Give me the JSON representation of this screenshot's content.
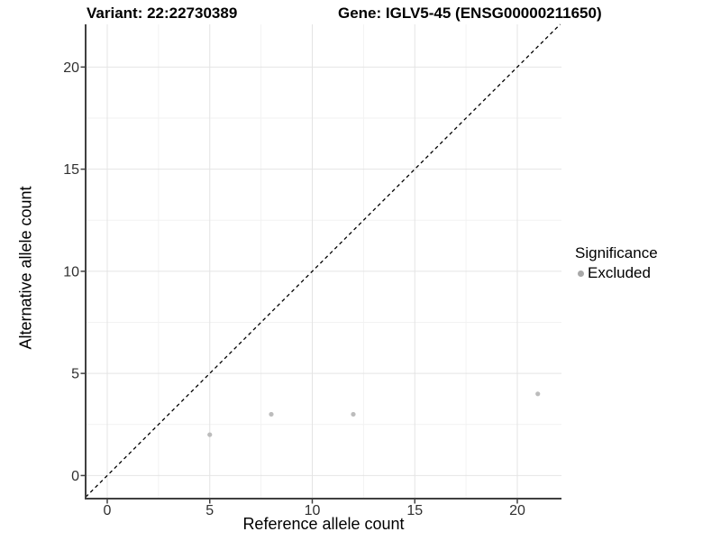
{
  "figure": {
    "title_left": "Variant: 22:22730389",
    "title_right": "Gene: IGLV5-45 (ENSG00000211650)"
  },
  "legend": {
    "title": "Significance",
    "items": [
      {
        "label": "Excluded",
        "color": "#a8a8a8"
      }
    ]
  },
  "colors": {
    "point": "#bcbcbc",
    "axis_line": "#404040",
    "tick_text": "#303030",
    "grid_major": "#e4e4e4",
    "grid_minor": "#f2f2f2",
    "abline": "#000000"
  },
  "chart_data": {
    "type": "scatter",
    "title": "Variant: 22:22730389 — Gene: IGLV5-45 (ENSG00000211650)",
    "xlabel": "Reference allele count",
    "ylabel": "Alternative allele count",
    "xlim": [
      -1.055,
      22.155
    ],
    "ylim": [
      -1.13,
      22.09
    ],
    "xticks": [
      0,
      5,
      10,
      15,
      20
    ],
    "yticks": [
      0,
      5,
      10,
      15,
      20
    ],
    "x_minor_breaks": [
      2.5,
      7.5,
      12.5,
      17.5
    ],
    "y_minor_breaks": [
      2.5,
      7.5,
      12.5,
      17.5
    ],
    "grid": true,
    "legend_position": "right",
    "legend_title": "Significance",
    "series": [
      {
        "name": "Excluded",
        "color": "#bcbcbc",
        "points": [
          [
            5,
            2
          ],
          [
            8,
            3
          ],
          [
            12,
            3
          ],
          [
            21,
            4
          ]
        ]
      }
    ],
    "abline": {
      "slope": 1,
      "intercept": 0,
      "style": "dashed"
    }
  }
}
